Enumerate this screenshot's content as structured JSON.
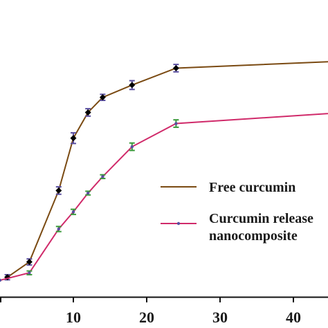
{
  "chart_data": {
    "type": "line",
    "title": "",
    "xlabel": "",
    "ylabel": "",
    "xlim": [
      0,
      48
    ],
    "ylim": [
      0,
      100
    ],
    "xticks": [
      10,
      20,
      30,
      40
    ],
    "xtick_labels": [
      "10",
      "20",
      "30",
      "40"
    ],
    "grid": false,
    "legend_position": "bottom-right",
    "series": [
      {
        "name": "Free curcumin",
        "color": "#7a4a12",
        "marker": "diamond",
        "marker_color": "#000000",
        "errorbar_color": "#5a4fa0",
        "x": [
          1,
          4,
          8,
          10,
          12,
          14,
          18,
          24,
          48
        ],
        "y": [
          1.3,
          7.9,
          38.7,
          61.3,
          72.4,
          78.9,
          84.2,
          91.5,
          94.7
        ],
        "err": [
          1.1,
          1.3,
          1.6,
          2.3,
          1.6,
          1.3,
          1.9,
          1.6,
          1.1
        ]
      },
      {
        "name": "Curcumin release nanocomposite",
        "color": "#d02a6a",
        "marker": "circle",
        "marker_color": "#5a4fa0",
        "errorbar_color": "#3a9a3a",
        "x": [
          0,
          4,
          8,
          10,
          12,
          14,
          18,
          24,
          48
        ],
        "y": [
          0,
          3.2,
          22.1,
          29.5,
          37.6,
          44.7,
          57.6,
          67.6,
          72.6
        ],
        "err": [
          0.0,
          0.8,
          1.1,
          1.1,
          0.8,
          0.8,
          1.6,
          1.6,
          1.3
        ]
      }
    ]
  }
}
